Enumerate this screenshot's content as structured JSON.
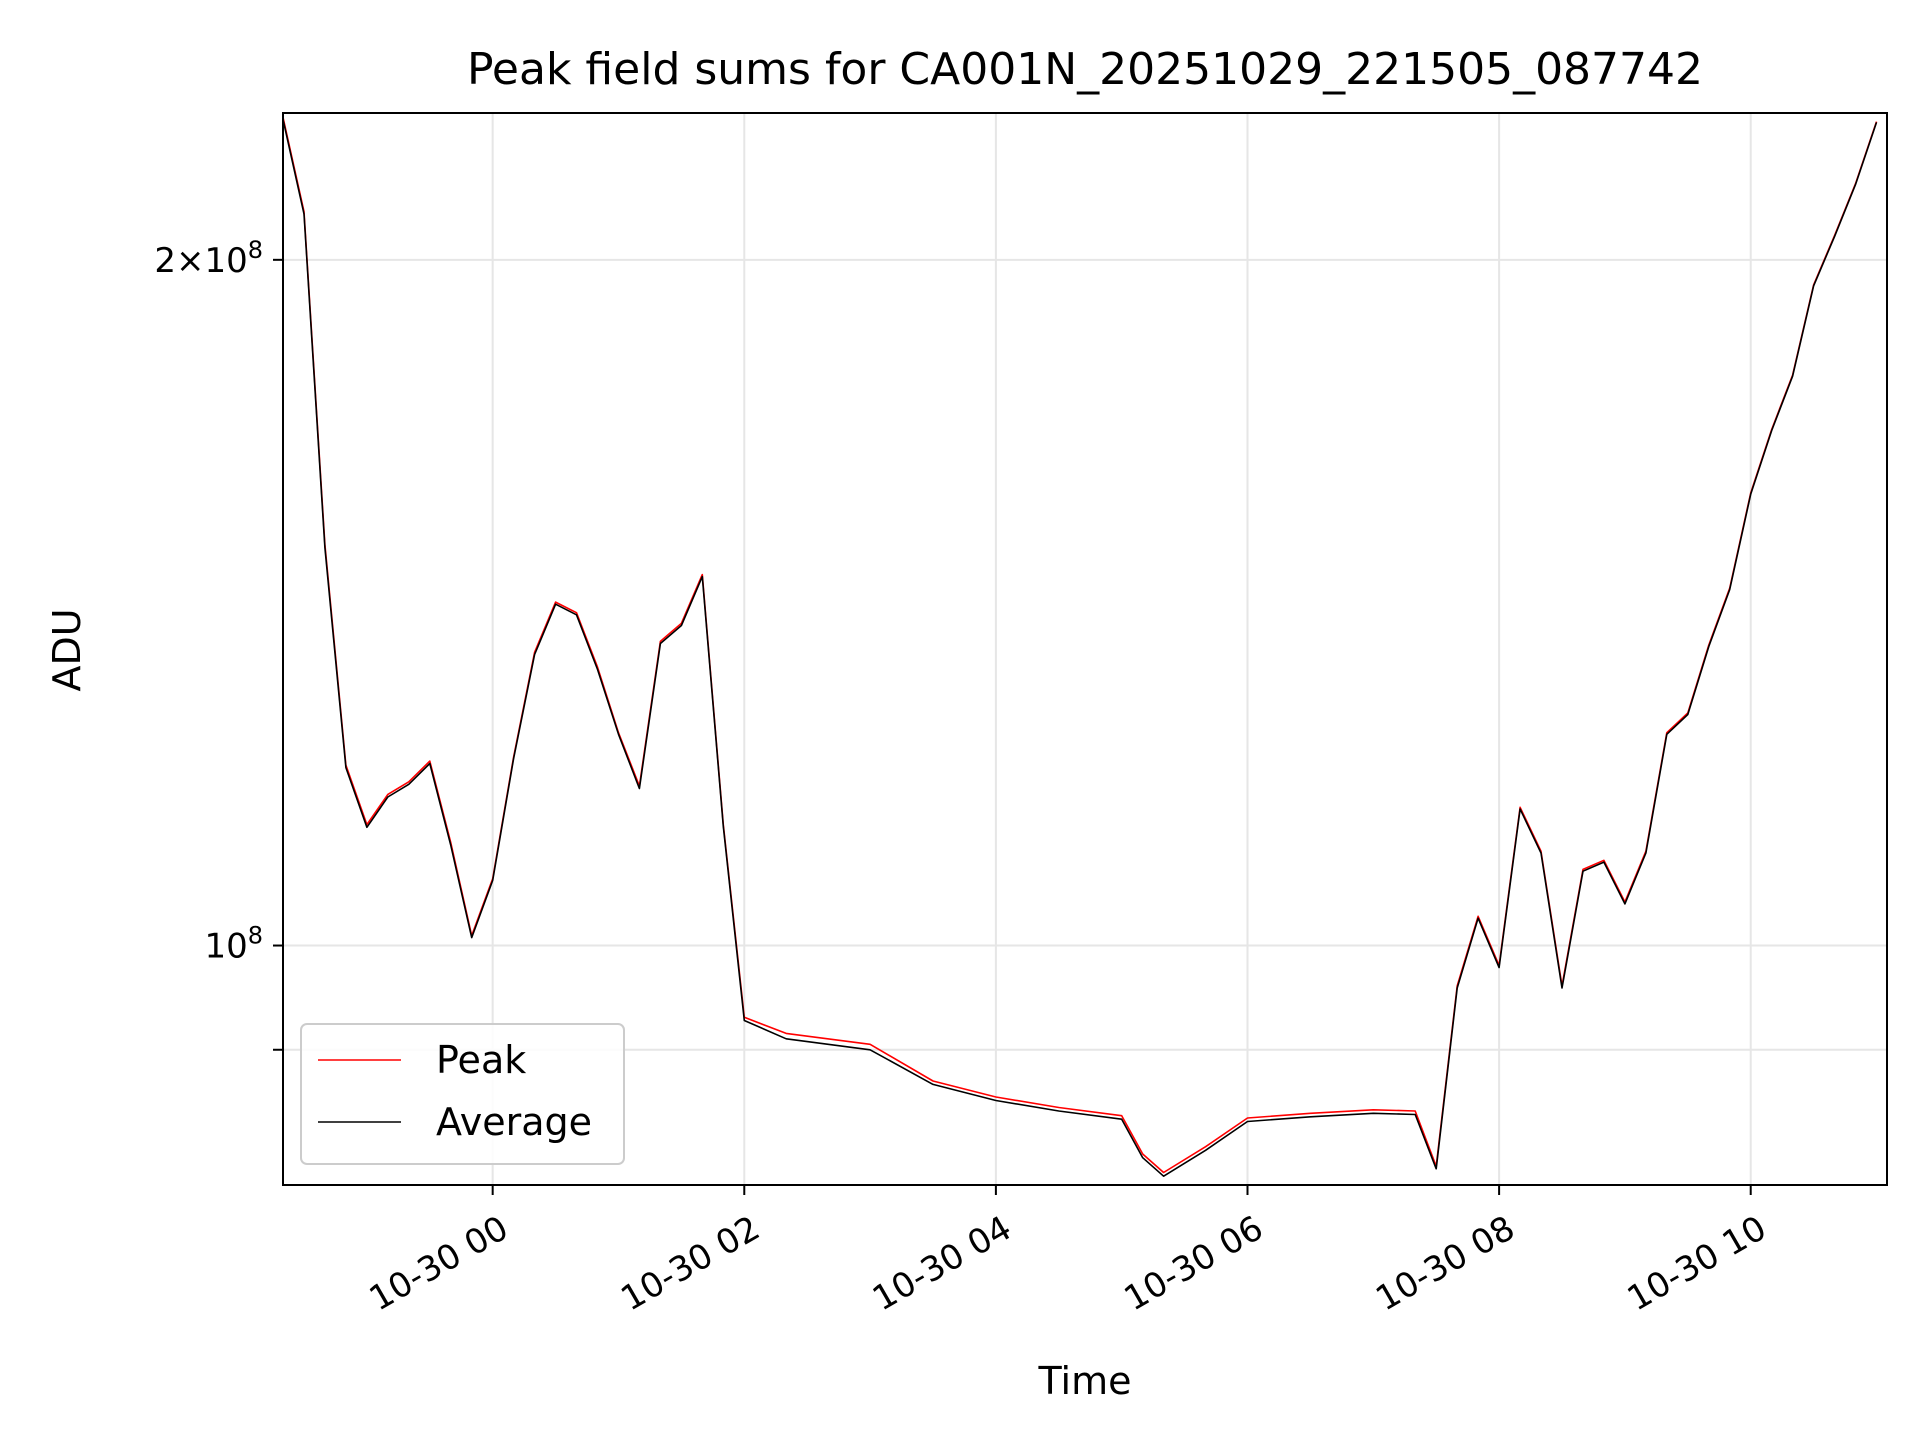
{
  "chart_data": {
    "type": "line",
    "title": "Peak field sums for CA001N_20251029_221505_087742",
    "xlabel": "Time",
    "ylabel": "ADU",
    "yscale": "log",
    "grid": true,
    "legend_position": "lower-left",
    "xlim": [
      "2025-10-29 22:20",
      "2025-10-30 11:05"
    ],
    "ylim": [
      78500000,
      232000000
    ],
    "x_ticks": [
      {
        "t": "2025-10-30 00:00",
        "label": "10-30 00"
      },
      {
        "t": "2025-10-30 02:00",
        "label": "10-30 02"
      },
      {
        "t": "2025-10-30 04:00",
        "label": "10-30 04"
      },
      {
        "t": "2025-10-30 06:00",
        "label": "10-30 06"
      },
      {
        "t": "2025-10-30 08:00",
        "label": "10-30 08"
      },
      {
        "t": "2025-10-30 10:00",
        "label": "10-30 10"
      }
    ],
    "y_ticks": [
      {
        "value": 200000000,
        "mantissa": "2",
        "exp": "8"
      },
      {
        "value": 100000000,
        "mantissa": "",
        "exp": "8"
      },
      {
        "value": 90000000,
        "mantissa": null,
        "exp": null
      }
    ],
    "series": [
      {
        "name": "Peak",
        "color": "#ff0000",
        "points": [
          [
            "2025-10-29 22:20",
            231000000
          ],
          [
            "2025-10-29 22:30",
            210000000
          ],
          [
            "2025-10-29 22:40",
            150000000
          ],
          [
            "2025-10-29 22:50",
            120000000
          ],
          [
            "2025-10-29 23:00",
            113000000
          ],
          [
            "2025-10-29 23:10",
            116500000
          ],
          [
            "2025-10-29 23:20",
            118000000
          ],
          [
            "2025-10-29 23:30",
            120500000
          ],
          [
            "2025-10-29 23:40",
            111000000
          ],
          [
            "2025-10-29 23:50",
            101000000
          ],
          [
            "2025-10-30 00:00",
            107000000
          ],
          [
            "2025-10-30 00:10",
            121000000
          ],
          [
            "2025-10-30 00:20",
            134500000
          ],
          [
            "2025-10-30 00:30",
            141500000
          ],
          [
            "2025-10-30 00:40",
            140000000
          ],
          [
            "2025-10-30 00:50",
            132500000
          ],
          [
            "2025-10-30 01:00",
            124000000
          ],
          [
            "2025-10-30 01:10",
            117500000
          ],
          [
            "2025-10-30 01:20",
            136000000
          ],
          [
            "2025-10-30 01:30",
            138500000
          ],
          [
            "2025-10-30 01:40",
            145500000
          ],
          [
            "2025-10-30 01:50",
            113000000
          ],
          [
            "2025-10-30 02:00",
            93000000
          ],
          [
            "2025-10-30 02:20",
            91500000
          ],
          [
            "2025-10-30 03:00",
            90500000
          ],
          [
            "2025-10-30 03:30",
            87200000
          ],
          [
            "2025-10-30 04:00",
            85800000
          ],
          [
            "2025-10-30 04:30",
            84900000
          ],
          [
            "2025-10-30 05:00",
            84200000
          ],
          [
            "2025-10-30 05:10",
            81000000
          ],
          [
            "2025-10-30 05:20",
            79500000
          ],
          [
            "2025-10-30 05:40",
            81600000
          ],
          [
            "2025-10-30 06:00",
            84000000
          ],
          [
            "2025-10-30 06:30",
            84400000
          ],
          [
            "2025-10-30 07:00",
            84700000
          ],
          [
            "2025-10-30 07:20",
            84600000
          ],
          [
            "2025-10-30 07:30",
            80000000
          ],
          [
            "2025-10-30 07:40",
            96000000
          ],
          [
            "2025-10-30 07:50",
            103000000
          ],
          [
            "2025-10-30 08:00",
            98000000
          ],
          [
            "2025-10-30 08:10",
            115000000
          ],
          [
            "2025-10-30 08:20",
            110000000
          ],
          [
            "2025-10-30 08:30",
            96000000
          ],
          [
            "2025-10-30 08:40",
            108000000
          ],
          [
            "2025-10-30 08:50",
            109000000
          ],
          [
            "2025-10-30 09:00",
            104500000
          ],
          [
            "2025-10-30 09:10",
            110000000
          ],
          [
            "2025-10-30 09:20",
            124000000
          ],
          [
            "2025-10-30 09:30",
            126500000
          ],
          [
            "2025-10-30 09:40",
            135500000
          ],
          [
            "2025-10-30 09:50",
            143500000
          ],
          [
            "2025-10-30 10:00",
            158000000
          ],
          [
            "2025-10-30 10:10",
            168500000
          ],
          [
            "2025-10-30 10:20",
            178000000
          ],
          [
            "2025-10-30 10:30",
            195000000
          ],
          [
            "2025-10-30 10:40",
            205000000
          ],
          [
            "2025-10-30 10:50",
            216000000
          ],
          [
            "2025-10-30 11:00",
            230000000
          ]
        ]
      },
      {
        "name": "Average",
        "color": "#000000",
        "points": [
          [
            "2025-10-29 22:20",
            230500000
          ],
          [
            "2025-10-29 22:30",
            209500000
          ],
          [
            "2025-10-29 22:40",
            149500000
          ],
          [
            "2025-10-29 22:50",
            119700000
          ],
          [
            "2025-10-29 23:00",
            112700000
          ],
          [
            "2025-10-29 23:10",
            116200000
          ],
          [
            "2025-10-29 23:20",
            117700000
          ],
          [
            "2025-10-29 23:30",
            120200000
          ],
          [
            "2025-10-29 23:40",
            110700000
          ],
          [
            "2025-10-29 23:50",
            100800000
          ],
          [
            "2025-10-30 00:00",
            106800000
          ],
          [
            "2025-10-30 00:10",
            120800000
          ],
          [
            "2025-10-30 00:20",
            134200000
          ],
          [
            "2025-10-30 00:30",
            141200000
          ],
          [
            "2025-10-30 00:40",
            139700000
          ],
          [
            "2025-10-30 00:50",
            132200000
          ],
          [
            "2025-10-30 01:00",
            123800000
          ],
          [
            "2025-10-30 01:10",
            117200000
          ],
          [
            "2025-10-30 01:20",
            135700000
          ],
          [
            "2025-10-30 01:30",
            138200000
          ],
          [
            "2025-10-30 01:40",
            145200000
          ],
          [
            "2025-10-30 01:50",
            112800000
          ],
          [
            "2025-10-30 02:00",
            92700000
          ],
          [
            "2025-10-30 02:20",
            91000000
          ],
          [
            "2025-10-30 03:00",
            90000000
          ],
          [
            "2025-10-30 03:30",
            86900000
          ],
          [
            "2025-10-30 04:00",
            85500000
          ],
          [
            "2025-10-30 04:30",
            84600000
          ],
          [
            "2025-10-30 05:00",
            83900000
          ],
          [
            "2025-10-30 05:10",
            80700000
          ],
          [
            "2025-10-30 05:20",
            79200000
          ],
          [
            "2025-10-30 05:40",
            81300000
          ],
          [
            "2025-10-30 06:00",
            83700000
          ],
          [
            "2025-10-30 06:30",
            84100000
          ],
          [
            "2025-10-30 07:00",
            84400000
          ],
          [
            "2025-10-30 07:20",
            84300000
          ],
          [
            "2025-10-30 07:30",
            79800000
          ],
          [
            "2025-10-30 07:40",
            95800000
          ],
          [
            "2025-10-30 07:50",
            102800000
          ],
          [
            "2025-10-30 08:00",
            97800000
          ],
          [
            "2025-10-30 08:10",
            114800000
          ],
          [
            "2025-10-30 08:20",
            109800000
          ],
          [
            "2025-10-30 08:30",
            95800000
          ],
          [
            "2025-10-30 08:40",
            107800000
          ],
          [
            "2025-10-30 08:50",
            108800000
          ],
          [
            "2025-10-30 09:00",
            104300000
          ],
          [
            "2025-10-30 09:10",
            109800000
          ],
          [
            "2025-10-30 09:20",
            123800000
          ],
          [
            "2025-10-30 09:30",
            126300000
          ],
          [
            "2025-10-30 09:40",
            135300000
          ],
          [
            "2025-10-30 09:50",
            143300000
          ],
          [
            "2025-10-30 10:00",
            157800000
          ],
          [
            "2025-10-30 10:10",
            168300000
          ],
          [
            "2025-10-30 10:20",
            177800000
          ],
          [
            "2025-10-30 10:30",
            194800000
          ],
          [
            "2025-10-30 10:40",
            204800000
          ],
          [
            "2025-10-30 10:50",
            215800000
          ],
          [
            "2025-10-30 11:00",
            229800000
          ]
        ]
      }
    ]
  }
}
